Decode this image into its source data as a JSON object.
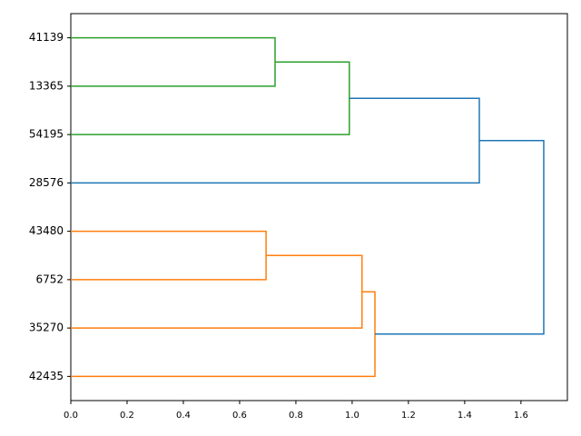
{
  "chart_data": {
    "type": "dendrogram",
    "leaves": [
      "41139",
      "13365",
      "54195",
      "28576",
      "43480",
      "6752",
      "35270",
      "42435"
    ],
    "merges": [
      {
        "children": [
          0,
          1
        ],
        "height": 0.726,
        "color": "#2ca02c"
      },
      {
        "children": [
          8,
          2
        ],
        "height": 0.99,
        "color": "#2ca02c"
      },
      {
        "children": [
          4,
          5
        ],
        "height": 0.694,
        "color": "#ff7f0e"
      },
      {
        "children": [
          10,
          6
        ],
        "height": 1.035,
        "color": "#ff7f0e"
      },
      {
        "children": [
          11,
          7
        ],
        "height": 1.081,
        "color": "#ff7f0e"
      },
      {
        "children": [
          9,
          3
        ],
        "height": 1.452,
        "color": "#1f77b4"
      },
      {
        "children": [
          13,
          12
        ],
        "height": 1.681,
        "color": "#1f77b4"
      }
    ],
    "xlim": [
      0,
      1.765
    ],
    "xticks": [
      {
        "value": 0,
        "label": "0.0"
      },
      0.2,
      0.4,
      0.6,
      0.8,
      {
        "value": 1,
        "label": "1.0"
      },
      1.2,
      1.4,
      1.6
    ]
  }
}
